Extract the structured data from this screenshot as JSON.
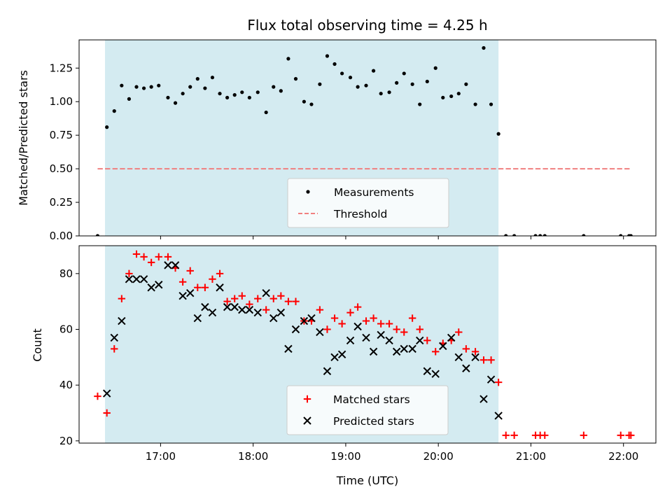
{
  "chart_data": {
    "title": "Flux total observing time = 4.25 h",
    "xlabel": "Time (UTC)",
    "x_unit": "hours UTC",
    "xlim": [
      16.12,
      22.35
    ],
    "xticks": [
      17,
      18,
      19,
      20,
      21,
      22
    ],
    "xtick_labels": [
      "17:00",
      "18:00",
      "19:00",
      "20:00",
      "21:00",
      "22:00"
    ],
    "shaded_span": [
      16.4,
      20.65
    ],
    "shade_color": "#d4ebf1",
    "panels": [
      {
        "type": "scatter",
        "ylabel": "Matched/Predicted stars",
        "ylim": [
          0,
          1.46
        ],
        "yticks": [
          0,
          0.25,
          0.5,
          0.75,
          1.0,
          1.25
        ],
        "ytick_labels": [
          "0.00",
          "0.25",
          "0.50",
          "0.75",
          "1.00",
          "1.25"
        ],
        "threshold": {
          "name": "Threshold",
          "value": 0.5,
          "x_range": [
            16.32,
            22.08
          ],
          "color": "#f08080"
        },
        "series": [
          {
            "name": "Measurements",
            "marker": "dot",
            "color": "#000000",
            "x": [
              16.32,
              16.42,
              16.5,
              16.58,
              16.66,
              16.74,
              16.82,
              16.9,
              16.98,
              17.08,
              17.16,
              17.24,
              17.32,
              17.4,
              17.48,
              17.56,
              17.64,
              17.72,
              17.8,
              17.88,
              17.96,
              18.05,
              18.14,
              18.22,
              18.3,
              18.38,
              18.46,
              18.55,
              18.63,
              18.72,
              18.8,
              18.88,
              18.96,
              19.05,
              19.13,
              19.22,
              19.3,
              19.38,
              19.47,
              19.55,
              19.63,
              19.72,
              19.8,
              19.88,
              19.97,
              20.05,
              20.14,
              20.22,
              20.3,
              20.4,
              20.49,
              20.57,
              20.65,
              20.73,
              20.82,
              21.05,
              21.1,
              21.15,
              21.57,
              21.97,
              22.06,
              22.08
            ],
            "y": [
              0.0,
              0.81,
              0.93,
              1.12,
              1.02,
              1.11,
              1.1,
              1.11,
              1.12,
              1.03,
              0.99,
              1.06,
              1.11,
              1.17,
              1.1,
              1.18,
              1.06,
              1.03,
              1.05,
              1.07,
              1.03,
              1.07,
              0.92,
              1.11,
              1.08,
              1.32,
              1.17,
              1.0,
              0.98,
              1.13,
              1.34,
              1.28,
              1.21,
              1.18,
              1.11,
              1.12,
              1.23,
              1.06,
              1.07,
              1.14,
              1.21,
              1.13,
              0.98,
              1.15,
              1.25,
              1.03,
              1.04,
              1.06,
              1.13,
              0.98,
              1.4,
              0.98,
              0.76,
              0.0,
              0.0,
              0.0,
              0.0,
              0.0,
              0.0,
              0.0,
              0.0,
              0.0
            ]
          }
        ],
        "legend": {
          "placement": "lower-center",
          "entries": [
            "Measurements",
            "Threshold"
          ]
        }
      },
      {
        "type": "scatter",
        "ylabel": "Count",
        "ylim": [
          19.2,
          90.0
        ],
        "yticks": [
          20,
          40,
          60,
          80
        ],
        "ytick_labels": [
          "20",
          "40",
          "60",
          "80"
        ],
        "series": [
          {
            "name": "Matched stars",
            "marker": "plus",
            "color": "#ff0000",
            "x": [
              16.32,
              16.42,
              16.5,
              16.58,
              16.66,
              16.74,
              16.82,
              16.9,
              16.98,
              17.08,
              17.16,
              17.24,
              17.32,
              17.4,
              17.48,
              17.56,
              17.64,
              17.72,
              17.8,
              17.88,
              17.96,
              18.05,
              18.14,
              18.22,
              18.3,
              18.38,
              18.46,
              18.55,
              18.63,
              18.72,
              18.8,
              18.88,
              18.96,
              19.05,
              19.13,
              19.22,
              19.3,
              19.38,
              19.47,
              19.55,
              19.63,
              19.72,
              19.8,
              19.88,
              19.97,
              20.05,
              20.14,
              20.22,
              20.3,
              20.4,
              20.49,
              20.57,
              20.65,
              20.73,
              20.82,
              21.05,
              21.1,
              21.15,
              21.57,
              21.97,
              22.06,
              22.08
            ],
            "y": [
              36,
              30,
              53,
              71,
              80,
              87,
              86,
              84,
              86,
              86,
              82,
              77,
              81,
              75,
              75,
              78,
              80,
              70,
              71,
              72,
              69,
              71,
              67,
              71,
              72,
              70,
              70,
              63,
              63,
              67,
              60,
              64,
              62,
              66,
              68,
              63,
              64,
              62,
              62,
              60,
              59,
              64,
              60,
              56,
              52,
              55,
              56,
              59,
              53,
              52,
              49,
              49,
              41,
              22,
              22,
              22,
              22,
              22,
              22,
              22,
              22,
              22
            ]
          },
          {
            "name": "Predicted stars",
            "marker": "x",
            "color": "#000000",
            "x": [
              16.42,
              16.5,
              16.58,
              16.66,
              16.74,
              16.82,
              16.9,
              16.98,
              17.08,
              17.16,
              17.24,
              17.32,
              17.4,
              17.48,
              17.56,
              17.64,
              17.72,
              17.8,
              17.88,
              17.96,
              18.05,
              18.14,
              18.22,
              18.3,
              18.38,
              18.46,
              18.55,
              18.63,
              18.72,
              18.8,
              18.88,
              18.96,
              19.05,
              19.13,
              19.22,
              19.3,
              19.38,
              19.47,
              19.55,
              19.63,
              19.72,
              19.8,
              19.88,
              19.97,
              20.05,
              20.14,
              20.22,
              20.3,
              20.4,
              20.49,
              20.57,
              20.65
            ],
            "y": [
              37,
              57,
              63,
              78,
              78,
              78,
              75,
              76,
              83,
              83,
              72,
              73,
              64,
              68,
              66,
              75,
              68,
              68,
              67,
              67,
              66,
              73,
              64,
              66,
              53,
              60,
              63,
              64,
              59,
              45,
              50,
              51,
              56,
              61,
              57,
              52,
              58,
              56,
              52,
              53,
              53,
              56,
              45,
              44,
              54,
              57,
              50,
              46,
              50,
              35,
              42,
              29
            ]
          }
        ],
        "legend": {
          "placement": "lower-center",
          "entries": [
            "Matched stars",
            "Predicted stars"
          ]
        }
      }
    ]
  }
}
